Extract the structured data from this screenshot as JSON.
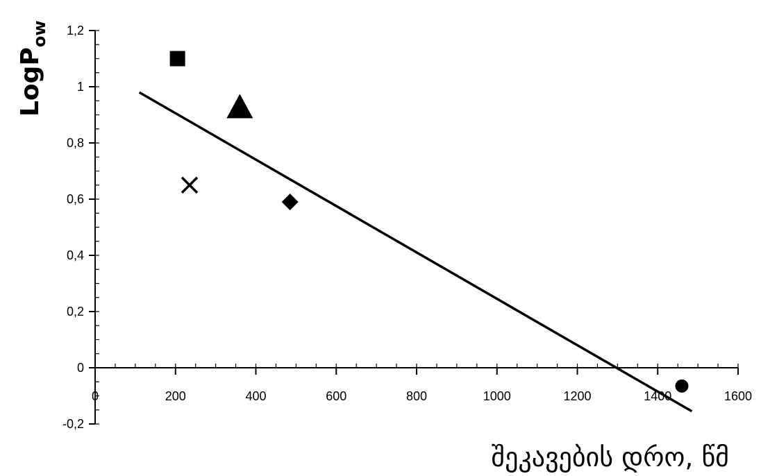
{
  "chart_data": {
    "type": "scatter",
    "title": "",
    "xlabel": "შეკავების დრო, წმ",
    "ylabel_main": "LogP",
    "ylabel_sub": "ow",
    "xlim": [
      0,
      1600
    ],
    "ylim": [
      -0.2,
      1.2
    ],
    "x_ticks": [
      0,
      200,
      400,
      600,
      800,
      1000,
      1200,
      1400,
      1600
    ],
    "x_tick_labels": [
      "0",
      "200",
      "400",
      "600",
      "800",
      "1000",
      "1200",
      "1400",
      "1600"
    ],
    "y_ticks": [
      -0.2,
      0,
      0.2,
      0.4,
      0.6,
      0.8,
      1.0,
      1.2
    ],
    "y_tick_labels": [
      "-0,2",
      "0",
      "0,2",
      "0,4",
      "0,6",
      "0,8",
      "1",
      "1,2"
    ],
    "x_minor_step": 50,
    "y_minor_step": 0.05,
    "grid": false,
    "legend": "none",
    "color": "#000000",
    "points": [
      {
        "marker": "square",
        "x": 205,
        "y": 1.1
      },
      {
        "marker": "triangle",
        "x": 360,
        "y": 0.92
      },
      {
        "marker": "cross",
        "x": 235,
        "y": 0.65
      },
      {
        "marker": "diamond",
        "x": 485,
        "y": 0.59
      },
      {
        "marker": "circle",
        "x": 1460,
        "y": -0.065
      }
    ],
    "trendline": {
      "x1": 110,
      "y1": 0.98,
      "x2": 1485,
      "y2": -0.155
    }
  }
}
